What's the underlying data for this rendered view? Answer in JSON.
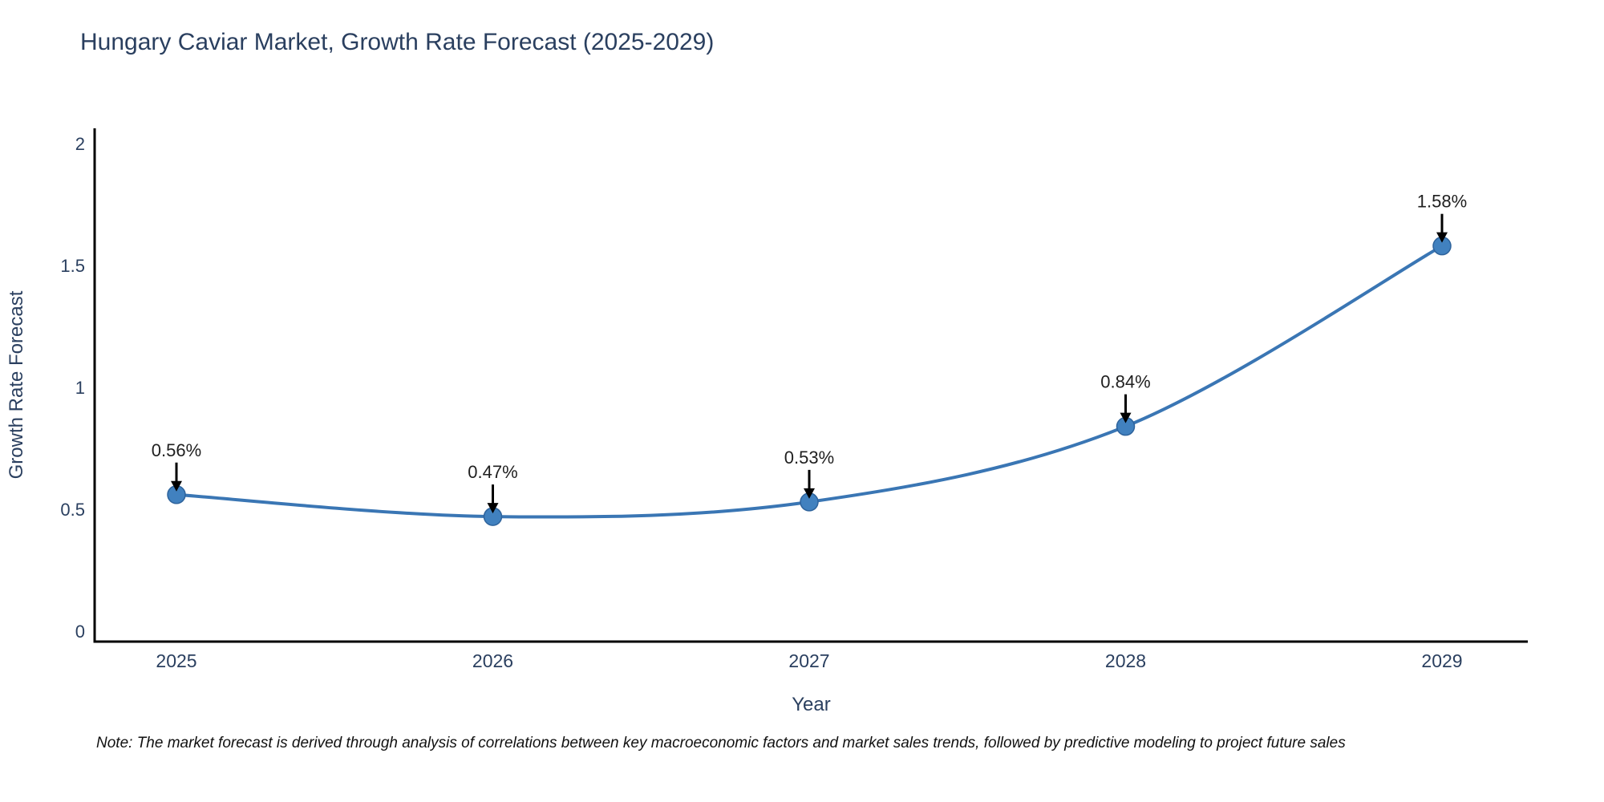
{
  "note": "Note: The market forecast is derived through analysis of correlations between key macroeconomic factors and market sales trends, followed by predictive modeling to project future sales",
  "chart_data": {
    "type": "line",
    "title": "Hungary Caviar Market, Growth Rate Forecast (2025-2029)",
    "xlabel": "Year",
    "ylabel": "Growth Rate Forecast",
    "x": [
      2025,
      2026,
      2027,
      2028,
      2029
    ],
    "categories": [
      "2025",
      "2026",
      "2027",
      "2028",
      "2029"
    ],
    "values": [
      0.56,
      0.47,
      0.53,
      0.84,
      1.58
    ],
    "point_labels": [
      "0.56%",
      "0.47%",
      "0.53%",
      "0.84%",
      "1.58%"
    ],
    "ylim": [
      0,
      2
    ],
    "yticks": [
      0,
      0.5,
      1,
      1.5,
      2
    ],
    "ytick_labels": [
      "0",
      "0.5",
      "1",
      "1.5",
      "2"
    ],
    "grid": false,
    "legend_position": "none",
    "line_style": "smooth-spline",
    "annotation_style": "label-with-down-arrow",
    "colors": {
      "line": "#3a76b4",
      "marker_fill": "#4181bf",
      "marker_stroke": "#2e639c",
      "axis_line": "#000000",
      "tick_text": "#2a3f5f",
      "title_text": "#2a3f5f",
      "annotation_text": "#1f1f1f",
      "annotation_arrow": "#000000",
      "background": "#ffffff"
    }
  }
}
